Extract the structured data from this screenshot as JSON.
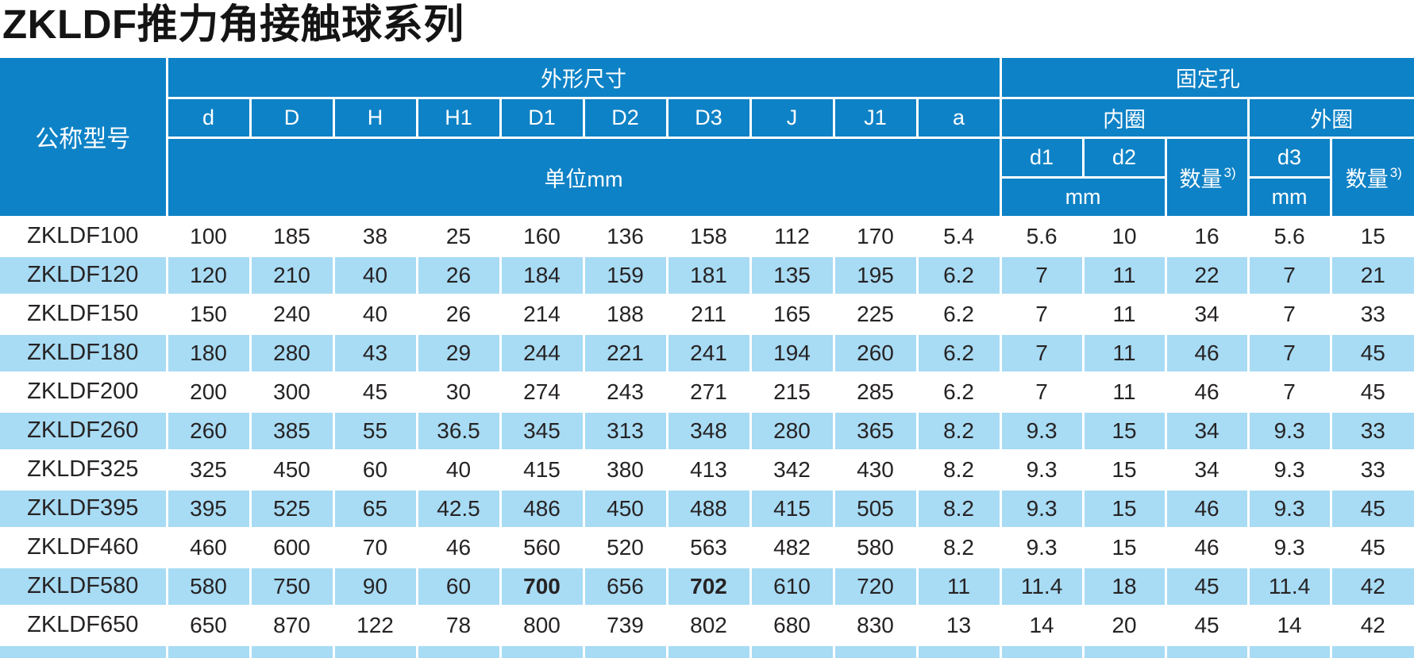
{
  "page_title": "ZKLDF推力角接触球系列",
  "colors": {
    "header_blue": "#0e82c6",
    "row_stripe_blue": "#a8dbf4",
    "grid_line": "#ffffff",
    "data_text": "#262324"
  },
  "table": {
    "header": {
      "model_col": "公称型号",
      "dims_group": "外形尺寸",
      "holes_group": "固定孔",
      "dim_cols": [
        "d",
        "D",
        "H",
        "H1",
        "D1",
        "D2",
        "D3",
        "J",
        "J1",
        "a"
      ],
      "dims_unit": "单位mm",
      "inner_ring": "内圈",
      "outer_ring": "外圈",
      "d1": "d1",
      "d2": "d2",
      "d3": "d3",
      "qty": "数量",
      "qty_sup": "3)",
      "mm_inner": "mm",
      "mm_outer": "mm"
    },
    "rows": [
      {
        "model": "ZKLDF100",
        "values": [
          "100",
          "185",
          "38",
          "25",
          "160",
          "136",
          "158",
          "112",
          "170",
          "5.4",
          "5.6",
          "10",
          "16",
          "5.6",
          "15"
        ],
        "bold": []
      },
      {
        "model": "ZKLDF120",
        "values": [
          "120",
          "210",
          "40",
          "26",
          "184",
          "159",
          "181",
          "135",
          "195",
          "6.2",
          "7",
          "11",
          "22",
          "7",
          "21"
        ],
        "bold": []
      },
      {
        "model": "ZKLDF150",
        "values": [
          "150",
          "240",
          "40",
          "26",
          "214",
          "188",
          "211",
          "165",
          "225",
          "6.2",
          "7",
          "11",
          "34",
          "7",
          "33"
        ],
        "bold": []
      },
      {
        "model": "ZKLDF180",
        "values": [
          "180",
          "280",
          "43",
          "29",
          "244",
          "221",
          "241",
          "194",
          "260",
          "6.2",
          "7",
          "11",
          "46",
          "7",
          "45"
        ],
        "bold": []
      },
      {
        "model": "ZKLDF200",
        "values": [
          "200",
          "300",
          "45",
          "30",
          "274",
          "243",
          "271",
          "215",
          "285",
          "6.2",
          "7",
          "11",
          "46",
          "7",
          "45"
        ],
        "bold": []
      },
      {
        "model": "ZKLDF260",
        "values": [
          "260",
          "385",
          "55",
          "36.5",
          "345",
          "313",
          "348",
          "280",
          "365",
          "8.2",
          "9.3",
          "15",
          "34",
          "9.3",
          "33"
        ],
        "bold": []
      },
      {
        "model": "ZKLDF325",
        "values": [
          "325",
          "450",
          "60",
          "40",
          "415",
          "380",
          "413",
          "342",
          "430",
          "8.2",
          "9.3",
          "15",
          "34",
          "9.3",
          "33"
        ],
        "bold": []
      },
      {
        "model": "ZKLDF395",
        "values": [
          "395",
          "525",
          "65",
          "42.5",
          "486",
          "450",
          "488",
          "415",
          "505",
          "8.2",
          "9.3",
          "15",
          "46",
          "9.3",
          "45"
        ],
        "bold": []
      },
      {
        "model": "ZKLDF460",
        "values": [
          "460",
          "600",
          "70",
          "46",
          "560",
          "520",
          "563",
          "482",
          "580",
          "8.2",
          "9.3",
          "15",
          "46",
          "9.3",
          "45"
        ],
        "bold": []
      },
      {
        "model": "ZKLDF580",
        "values": [
          "580",
          "750",
          "90",
          "60",
          "700",
          "656",
          "702",
          "610",
          "720",
          "11",
          "11.4",
          "18",
          "45",
          "11.4",
          "42"
        ],
        "bold": [
          4,
          6
        ]
      },
      {
        "model": "ZKLDF650",
        "values": [
          "650",
          "870",
          "122",
          "78",
          "800",
          "739",
          "802",
          "680",
          "830",
          "13",
          "14",
          "20",
          "45",
          "14",
          "42"
        ],
        "bold": []
      }
    ]
  }
}
